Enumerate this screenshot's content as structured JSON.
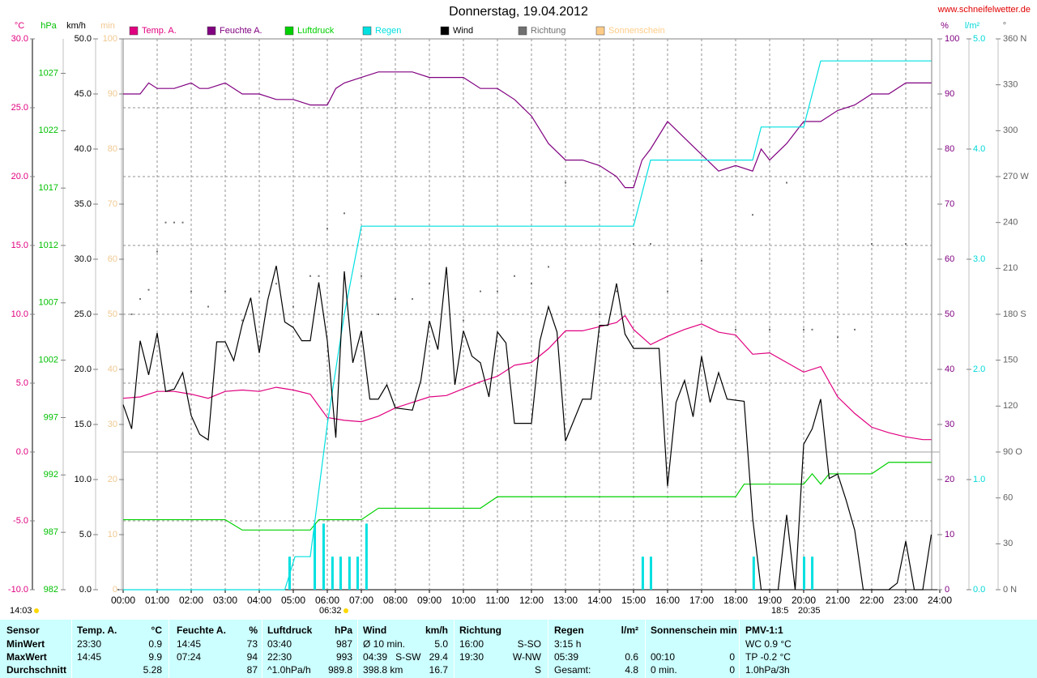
{
  "chart_data": {
    "type": "line",
    "title": "Donnerstag, 19.04.2012",
    "source": "www.schneifelwetter.de",
    "grid": true,
    "xlim": [
      0,
      24
    ],
    "xticks": [
      {
        "value": 0,
        "label": "00:00"
      },
      {
        "value": 1,
        "label": "01:00"
      },
      {
        "value": 2,
        "label": "02:00"
      },
      {
        "value": 3,
        "label": "03:00"
      },
      {
        "value": 4,
        "label": "04:00"
      },
      {
        "value": 5,
        "label": "05:00"
      },
      {
        "value": 6,
        "label": "06:00"
      },
      {
        "value": 7,
        "label": "07:00"
      },
      {
        "value": 8,
        "label": "08:00"
      },
      {
        "value": 9,
        "label": "09:00"
      },
      {
        "value": 10,
        "label": "10:00"
      },
      {
        "value": 11,
        "label": "11:00"
      },
      {
        "value": 12,
        "label": "12:00"
      },
      {
        "value": 13,
        "label": "13:00"
      },
      {
        "value": 14,
        "label": "14:00"
      },
      {
        "value": 15,
        "label": "15:00"
      },
      {
        "value": 16,
        "label": "16:00"
      },
      {
        "value": 17,
        "label": "17:00"
      },
      {
        "value": 18,
        "label": "18:00"
      },
      {
        "value": 19,
        "label": "19:00"
      },
      {
        "value": 20,
        "label": "20:00"
      },
      {
        "value": 21,
        "label": "21:00"
      },
      {
        "value": 22,
        "label": "22:00"
      },
      {
        "value": 23,
        "label": "23:00"
      },
      {
        "value": 24,
        "label": "24:00"
      }
    ],
    "axes": [
      {
        "unit": "°C",
        "color": "#e0007f",
        "ylim": [
          -10,
          30
        ],
        "yticks": [
          {
            "value": -10,
            "label": "-10.0"
          },
          {
            "value": -5,
            "label": "-5.0"
          },
          {
            "value": 0,
            "label": "0.0"
          },
          {
            "value": 5,
            "label": "5.0"
          },
          {
            "value": 10,
            "label": "10.0"
          },
          {
            "value": 15,
            "label": "15.0"
          },
          {
            "value": 20,
            "label": "20.0"
          },
          {
            "value": 25,
            "label": "25.0"
          },
          {
            "value": 30,
            "label": "30.0"
          }
        ]
      },
      {
        "unit": "hPa",
        "color": "#00c000",
        "ylim": [
          982,
          1030
        ],
        "yticks": [
          982,
          987,
          992,
          997,
          1002,
          1007,
          1012,
          1017,
          1022,
          1027
        ]
      },
      {
        "unit": "km/h",
        "color": "#000000",
        "ylim": [
          0,
          50
        ],
        "yticks": [
          {
            "value": 0,
            "label": "0.0"
          },
          {
            "value": 5,
            "label": "5.0"
          },
          {
            "value": 10,
            "label": "10.0"
          },
          {
            "value": 15,
            "label": "15.0"
          },
          {
            "value": 20,
            "label": "20.0"
          },
          {
            "value": 25,
            "label": "25.0"
          },
          {
            "value": 30,
            "label": "30.0"
          },
          {
            "value": 35,
            "label": "35.0"
          },
          {
            "value": 40,
            "label": "40.0"
          },
          {
            "value": 45,
            "label": "45.0"
          },
          {
            "value": 50,
            "label": "50.0"
          }
        ]
      },
      {
        "unit": "min",
        "color": "#f0c890",
        "ylim": [
          0,
          100
        ],
        "yticks": [
          0,
          10,
          20,
          30,
          40,
          50,
          60,
          70,
          80,
          90,
          100
        ]
      },
      {
        "unit": "%",
        "color": "#800080",
        "ylim": [
          0,
          100
        ],
        "yticks": [
          0,
          10,
          20,
          30,
          40,
          50,
          60,
          70,
          80,
          90,
          100
        ]
      },
      {
        "unit": "l/m²",
        "color": "#00d8d8",
        "ylim": [
          0,
          5
        ],
        "yticks": [
          {
            "value": 0,
            "label": "0.0"
          },
          {
            "value": 1,
            "label": "1.0"
          },
          {
            "value": 2,
            "label": "2.0"
          },
          {
            "value": 3,
            "label": "3.0"
          },
          {
            "value": 4,
            "label": "4.0"
          },
          {
            "value": 5,
            "label": "5.0"
          }
        ]
      },
      {
        "unit": "°",
        "color": "#606060",
        "ylim": [
          0,
          360
        ],
        "yticks": [
          {
            "value": 0,
            "label": "0 N"
          },
          30,
          60,
          {
            "value": 90,
            "label": "90 O"
          },
          120,
          150,
          {
            "value": 180,
            "label": "180 S"
          },
          210,
          240,
          {
            "value": 270,
            "label": "270 W"
          },
          300,
          330,
          {
            "value": 360,
            "label": "360 N"
          }
        ]
      }
    ],
    "series": [
      {
        "name": "Temp. A.",
        "color": "#e0007f",
        "axis": "°C",
        "style": "line",
        "x": [
          0,
          0.5,
          1,
          1.5,
          2,
          2.5,
          3,
          3.5,
          4,
          4.5,
          5,
          5.5,
          6,
          6.5,
          7,
          7.5,
          8,
          8.5,
          9,
          9.5,
          10,
          10.5,
          11,
          11.5,
          12,
          12.5,
          13,
          13.5,
          14,
          14.5,
          14.75,
          15,
          15.5,
          16,
          16.5,
          17,
          17.5,
          18,
          18.5,
          19,
          19.5,
          20,
          20.5,
          21,
          21.5,
          22,
          22.5,
          23,
          23.5,
          23.75
        ],
        "values": [
          3.9,
          4.0,
          4.4,
          4.4,
          4.2,
          3.9,
          4.4,
          4.5,
          4.4,
          4.7,
          4.5,
          4.2,
          2.5,
          2.3,
          2.2,
          2.6,
          3.2,
          3.6,
          4.0,
          4.1,
          4.6,
          5.1,
          5.5,
          6.3,
          6.5,
          7.5,
          8.8,
          8.8,
          9.1,
          9.4,
          9.9,
          8.9,
          7.8,
          8.4,
          8.9,
          9.3,
          8.7,
          8.5,
          7.1,
          7.2,
          6.5,
          5.8,
          6.2,
          4.0,
          2.8,
          1.8,
          1.4,
          1.1,
          0.9,
          0.9
        ]
      },
      {
        "name": "Feuchte A.",
        "color": "#800080",
        "axis": "%",
        "style": "line",
        "x": [
          0,
          0.5,
          0.75,
          1,
          1.5,
          2,
          2.25,
          2.5,
          3,
          3.5,
          4,
          4.5,
          5,
          5.5,
          6,
          6.25,
          6.5,
          7,
          7.5,
          8,
          8.5,
          9,
          9.5,
          10,
          10.5,
          11,
          11.5,
          12,
          12.5,
          13,
          13.5,
          14,
          14.5,
          14.75,
          15,
          15.25,
          15.5,
          16,
          16.5,
          17,
          17.5,
          18,
          18.5,
          18.75,
          19,
          19.5,
          20,
          20.5,
          21,
          21.5,
          22,
          22.5,
          23,
          23.75
        ],
        "values": [
          90,
          90,
          92,
          91,
          91,
          92,
          91,
          91,
          92,
          90,
          90,
          89,
          89,
          88,
          88,
          91,
          92,
          93,
          94,
          94,
          94,
          93,
          93,
          93,
          91,
          91,
          89,
          86,
          81,
          78,
          78,
          77,
          75,
          73,
          73,
          78,
          80,
          85,
          82,
          79,
          76,
          77,
          76,
          80,
          78,
          81,
          85,
          85,
          87,
          88,
          90,
          90,
          92,
          92
        ]
      },
      {
        "name": "Luftdruck",
        "color": "#00d000",
        "axis": "hPa",
        "style": "line",
        "x": [
          0,
          3,
          3.5,
          5.5,
          5.75,
          7,
          7.5,
          10.5,
          11,
          18,
          18.25,
          20,
          20.25,
          20.5,
          20.75,
          22,
          22.5,
          23.75
        ],
        "values": [
          988.1,
          988.1,
          987.2,
          987.2,
          988.1,
          988.1,
          989.1,
          989.1,
          990.1,
          990.1,
          991.2,
          991.2,
          992.1,
          991.2,
          992.1,
          992.1,
          993.1,
          993.1
        ]
      },
      {
        "name": "Regen",
        "color": "#00e0e0",
        "axis": "l/m²",
        "style": "line",
        "x": [
          0,
          4.75,
          5.05,
          5.5,
          6,
          6.5,
          7,
          15,
          15.5,
          18.5,
          18.75,
          20,
          20.5,
          23.75
        ],
        "values": [
          0,
          0,
          0.3,
          0.3,
          1.5,
          2.5,
          3.3,
          3.3,
          3.9,
          3.9,
          4.2,
          4.2,
          4.8,
          4.8
        ]
      },
      {
        "name": "Wind",
        "color": "#000000",
        "axis": "km/h",
        "style": "line",
        "x": [
          0,
          0.25,
          0.5,
          0.75,
          1,
          1.25,
          1.5,
          1.75,
          2,
          2.25,
          2.5,
          2.75,
          3,
          3.25,
          3.5,
          3.75,
          4,
          4.25,
          4.5,
          4.75,
          5,
          5.25,
          5.5,
          5.75,
          6,
          6.25,
          6.5,
          6.75,
          7,
          7.25,
          7.5,
          7.75,
          8,
          8.5,
          8.75,
          9,
          9.25,
          9.5,
          9.75,
          10,
          10.25,
          10.5,
          10.75,
          11,
          11.25,
          11.5,
          12,
          12.25,
          12.5,
          12.75,
          13,
          13.5,
          13.75,
          14,
          14.25,
          14.5,
          14.75,
          15,
          15.75,
          16,
          16.25,
          16.5,
          16.75,
          17,
          17.25,
          17.5,
          17.75,
          18.25,
          18.5,
          18.75,
          19.25,
          19.5,
          19.75,
          20,
          20.25,
          20.5,
          20.75,
          21,
          21.25,
          21.5,
          21.75,
          22.5,
          22.75,
          23,
          23.25,
          23.5,
          23.75
        ],
        "values": [
          16.8,
          14.6,
          22.6,
          19.5,
          23.3,
          18.0,
          18.2,
          19.7,
          15.8,
          14.1,
          13.6,
          22.5,
          22.5,
          20.8,
          24.1,
          26.5,
          21.5,
          26.3,
          29.4,
          24.3,
          23.8,
          22.6,
          22.6,
          27.9,
          22.6,
          13.8,
          28.9,
          20.6,
          23.5,
          17.3,
          17.3,
          18.6,
          16.5,
          16.3,
          19.0,
          24.4,
          21.8,
          29.3,
          18.6,
          23.5,
          21.2,
          20.6,
          17.5,
          23.4,
          22.4,
          15.1,
          15.1,
          22.6,
          25.7,
          23.4,
          13.5,
          17.3,
          17.3,
          24.0,
          24.0,
          27.8,
          23.2,
          21.9,
          21.9,
          9.4,
          17.0,
          19.0,
          15.7,
          21.2,
          17.0,
          19.7,
          17.3,
          17.1,
          6.5,
          0,
          0,
          6.8,
          0,
          13.2,
          14.6,
          17.3,
          10.1,
          10.5,
          8.1,
          5.4,
          0,
          0,
          0.6,
          4.4,
          0,
          0,
          5.0
        ]
      },
      {
        "name": "Richtung",
        "color": "#707070",
        "axis": "°",
        "style": "dots",
        "x": [
          0.25,
          0.5,
          0.75,
          1,
          1.25,
          1.5,
          1.75,
          2,
          2.5,
          3,
          3.5,
          4,
          4.5,
          5,
          5.5,
          5.75,
          6,
          6.5,
          7,
          7.5,
          8,
          8.5,
          9,
          9.5,
          10,
          10.5,
          11,
          11.5,
          12,
          12.5,
          13,
          14,
          14.5,
          15,
          15.5,
          16,
          17,
          18,
          18.5,
          19,
          19.5,
          20,
          20.25,
          21,
          21.5,
          22,
          23
        ],
        "values": [
          180,
          190,
          196,
          221,
          240,
          240,
          240,
          195,
          185,
          195,
          176,
          195,
          200,
          185,
          205,
          205,
          236,
          246,
          205,
          180,
          190,
          190,
          200,
          205,
          176,
          195,
          195,
          205,
          200,
          211,
          266,
          180,
          195,
          226,
          226,
          195,
          215,
          170,
          245,
          170,
          266,
          170,
          170,
          165,
          170,
          226,
          226
        ]
      },
      {
        "name": "Sonnenschein",
        "color": "#ffcc88",
        "axis": "min",
        "style": "line",
        "x": [],
        "values": []
      },
      {
        "color": "#00e0e0",
        "axis": "l/m²",
        "style": "bars",
        "x": [
          4.88,
          5.62,
          5.88,
          6.14,
          6.38,
          6.64,
          6.88,
          7.14,
          15.26,
          15.5,
          18.52,
          20.0,
          20.24
        ],
        "values": [
          0.3,
          0.6,
          0.6,
          0.3,
          0.3,
          0.3,
          0.3,
          0.6,
          0.3,
          0.3,
          0.3,
          0.3,
          0.3
        ]
      }
    ],
    "annotations": [
      "14:03",
      "06:32",
      "18:5",
      "20:35"
    ]
  },
  "table": {
    "header": [
      [
        "Sensor"
      ],
      [
        "Temp. A.",
        "°C"
      ],
      [
        "Feuchte A.",
        "%"
      ],
      [
        "Luftdruck",
        "hPa"
      ],
      [
        "Wind",
        "km/h"
      ],
      [
        "Richtung"
      ],
      [
        "Regen",
        "l/m²"
      ],
      [
        "Sonnenschein min"
      ],
      [
        "PMV-1:1"
      ]
    ],
    "rows": [
      [
        [
          "MinWert"
        ],
        [
          "23:30",
          "0.9"
        ],
        [
          "14:45",
          "73"
        ],
        [
          "03:40",
          "987"
        ],
        [
          "Ø 10 min.",
          "5.0"
        ],
        [
          "16:00",
          "S-SO"
        ],
        [
          "3:15 h"
        ],
        [],
        [
          "WC 0.9 °C"
        ]
      ],
      [
        [
          "MaxWert"
        ],
        [
          "14:45",
          "9.9"
        ],
        [
          "07:24",
          "94"
        ],
        [
          "22:30",
          "993"
        ],
        [
          "04:39",
          "S-SW",
          "29.4"
        ],
        [
          "19:30",
          "W-NW"
        ],
        [
          "05:39",
          "0.6"
        ],
        [
          "00:10",
          "0"
        ],
        [
          "TP -0.2 °C"
        ]
      ],
      [
        [
          "Durchschnitt"
        ],
        [
          "5.28"
        ],
        [
          "87"
        ],
        [
          "^1.0hPa/h",
          "989.8"
        ],
        [
          "398.8 km",
          "16.7"
        ],
        [
          "S"
        ],
        [
          "Gesamt:",
          "4.8"
        ],
        [
          "0 min.",
          "0"
        ],
        [
          "1.0hPa/3h"
        ]
      ]
    ]
  }
}
